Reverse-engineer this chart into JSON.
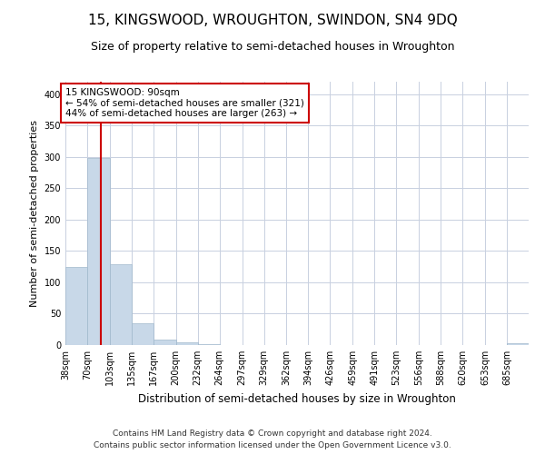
{
  "title": "15, KINGSWOOD, WROUGHTON, SWINDON, SN4 9DQ",
  "subtitle": "Size of property relative to semi-detached houses in Wroughton",
  "xlabel": "Distribution of semi-detached houses by size in Wroughton",
  "ylabel": "Number of semi-detached properties",
  "footer_line1": "Contains HM Land Registry data © Crown copyright and database right 2024.",
  "footer_line2": "Contains public sector information licensed under the Open Government Licence v3.0.",
  "annotation_title": "15 KINGSWOOD: 90sqm",
  "annotation_line1": "← 54% of semi-detached houses are smaller (321)",
  "annotation_line2": "44% of semi-detached houses are larger (263) →",
  "property_size_sqm": 90,
  "bin_labels": [
    "38sqm",
    "70sqm",
    "103sqm",
    "135sqm",
    "167sqm",
    "200sqm",
    "232sqm",
    "264sqm",
    "297sqm",
    "329sqm",
    "362sqm",
    "394sqm",
    "426sqm",
    "459sqm",
    "491sqm",
    "523sqm",
    "556sqm",
    "588sqm",
    "620sqm",
    "653sqm",
    "685sqm"
  ],
  "bin_edges": [
    38,
    70,
    103,
    135,
    167,
    200,
    232,
    264,
    297,
    329,
    362,
    394,
    426,
    459,
    491,
    523,
    556,
    588,
    620,
    653,
    685,
    717
  ],
  "bar_values": [
    125,
    298,
    129,
    35,
    8,
    5,
    2,
    0,
    0,
    0,
    0,
    0,
    0,
    0,
    0,
    0,
    0,
    0,
    0,
    0,
    3
  ],
  "bar_color": "#c8d8e8",
  "bar_edgecolor": "#a0b8cc",
  "vline_color": "#cc0000",
  "vline_x": 90,
  "ylim": [
    0,
    420
  ],
  "yticks": [
    0,
    50,
    100,
    150,
    200,
    250,
    300,
    350,
    400
  ],
  "grid_color": "#c8d0e0",
  "annotation_box_color": "#ffffff",
  "annotation_box_edgecolor": "#cc0000",
  "title_fontsize": 11,
  "subtitle_fontsize": 9,
  "axis_label_fontsize": 8,
  "tick_fontsize": 7,
  "annotation_fontsize": 7.5,
  "footer_fontsize": 6.5
}
